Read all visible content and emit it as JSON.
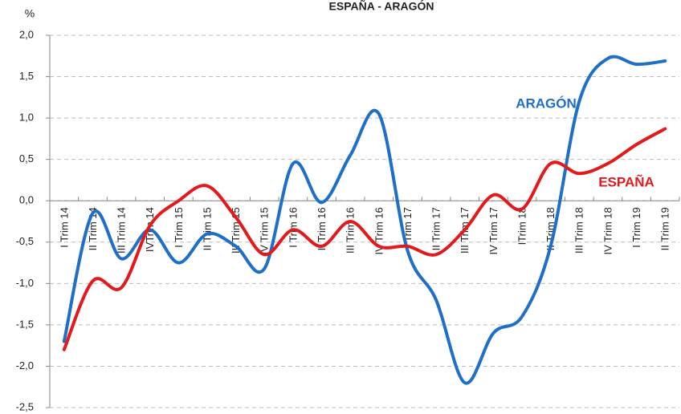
{
  "chart_data": {
    "type": "line",
    "title": "ESPAÑA - ARAGÓN",
    "y_label": "%",
    "categories": [
      "I Trim 14",
      "II Trim 14",
      "III Trim 14",
      "IVTrim 14",
      "I Trim 15",
      "II Trim 15",
      "III Trim 15",
      "IV Trim 15",
      "I Trim 16",
      "II Trim 16",
      "III Trim 16",
      "IV Trim 16",
      "I Trim 17",
      "II Trim 17",
      "III Trim 17",
      "IV Trim 17",
      "ITrim 18",
      "II Trim 18",
      "III Trim 18",
      "IV Trim 18",
      "I Trim 19",
      "II Trim 19"
    ],
    "series": [
      {
        "name": "ARAGÓN",
        "color": "#1f6fc8",
        "values": [
          -1.7,
          -0.15,
          -0.7,
          -0.35,
          -0.75,
          -0.4,
          -0.55,
          -0.82,
          0.45,
          -0.02,
          0.55,
          1.05,
          -0.6,
          -1.2,
          -2.2,
          -1.6,
          -1.4,
          -0.55,
          1.2,
          1.72,
          1.65,
          1.69
        ]
      },
      {
        "name": "ESPAÑA",
        "color": "#e3191c",
        "values": [
          -1.8,
          -0.97,
          -1.05,
          -0.3,
          0.0,
          0.18,
          -0.2,
          -0.65,
          -0.35,
          -0.55,
          -0.25,
          -0.55,
          -0.55,
          -0.65,
          -0.35,
          0.07,
          -0.1,
          0.45,
          0.33,
          0.45,
          0.68,
          0.87
        ]
      }
    ],
    "ylim": [
      -2.5,
      2.0
    ],
    "yticks": [
      {
        "value": -2.5,
        "label": "-2,5"
      },
      {
        "value": -2.0,
        "label": "-2,0"
      },
      {
        "value": -1.5,
        "label": "-1,5"
      },
      {
        "value": -1.0,
        "label": "-1,0"
      },
      {
        "value": -0.5,
        "label": "-0,5"
      },
      {
        "value": 0.0,
        "label": "0,0"
      },
      {
        "value": 0.5,
        "label": "0,5"
      },
      {
        "value": 1.0,
        "label": "1,0"
      },
      {
        "value": 1.5,
        "label": "1,5"
      },
      {
        "value": 2.0,
        "label": "2,0"
      }
    ],
    "grid": true
  }
}
